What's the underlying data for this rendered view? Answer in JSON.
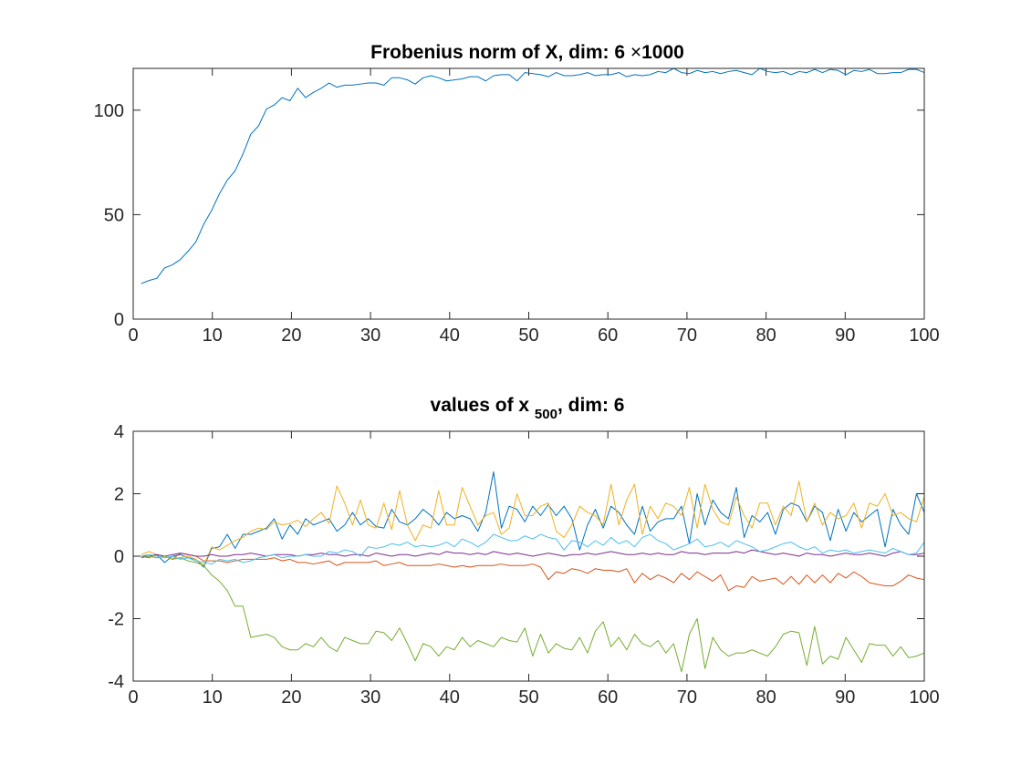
{
  "chart_data": [
    {
      "type": "line",
      "title": "Frobenius norm of X, dim: 6 ×1000",
      "title_parts": {
        "text": "Frobenius norm of X, dim: 6 ",
        "mult": "×",
        "count": "1000"
      },
      "xlabel": "",
      "ylabel": "",
      "xlim": [
        0,
        100
      ],
      "ylim": [
        0,
        120
      ],
      "xticks": [
        0,
        10,
        20,
        30,
        40,
        50,
        60,
        70,
        80,
        90,
        100
      ],
      "yticks": [
        0,
        50,
        100
      ],
      "grid": false,
      "series": [
        {
          "color": "#0072BD",
          "values": [
            17.0,
            18.5,
            19.5,
            24.5,
            26.0,
            28.5,
            32.5,
            37.0,
            45.5,
            52.0,
            60.0,
            66.5,
            71.0,
            79.0,
            88.5,
            92.5,
            100.5,
            102.5,
            106.0,
            104.5,
            110.5,
            106.0,
            108.5,
            110.5,
            113.0,
            111.0,
            112.0,
            112.0,
            112.5,
            113.0,
            113.0,
            112.0,
            115.5,
            115.5,
            114.5,
            112.5,
            115.5,
            116.5,
            115.5,
            114.0,
            114.5,
            115.0,
            116.0,
            116.0,
            114.0,
            116.5,
            117.0,
            117.0,
            114.0,
            118.0,
            117.5,
            117.0,
            116.0,
            118.0,
            116.5,
            116.5,
            117.0,
            118.0,
            116.5,
            117.0,
            117.0,
            118.0,
            116.0,
            117.0,
            116.5,
            117.0,
            118.5,
            118.0,
            120.0,
            118.0,
            117.5,
            119.0,
            118.0,
            118.5,
            117.5,
            118.5,
            119.0,
            118.0,
            117.0,
            120.0,
            118.5,
            118.0,
            118.5,
            117.0,
            118.5,
            118.0,
            119.5,
            118.0,
            119.5,
            119.0,
            117.0,
            119.0,
            118.5,
            119.5,
            117.5,
            117.5,
            118.0,
            118.0,
            119.5,
            119.5,
            118.0
          ]
        }
      ]
    },
    {
      "type": "line",
      "title": "values of x 500, dim: 6",
      "title_parts": {
        "prefix": "values of x ",
        "subscript": "500",
        "suffix": ", dim: 6"
      },
      "xlabel": "",
      "ylabel": "",
      "xlim": [
        0,
        100
      ],
      "ylim": [
        -4,
        4
      ],
      "xticks": [
        0,
        10,
        20,
        30,
        40,
        50,
        60,
        70,
        80,
        90,
        100
      ],
      "yticks": [
        -4,
        -2,
        0,
        2,
        4
      ],
      "grid": false,
      "series": [
        {
          "color": "#0072BD",
          "values": [
            -0.05,
            0.0,
            0.05,
            -0.2,
            0.0,
            0.05,
            -0.05,
            -0.1,
            -0.35,
            0.25,
            0.3,
            0.7,
            0.25,
            0.7,
            0.7,
            0.8,
            0.9,
            1.2,
            0.55,
            1.0,
            0.7,
            1.2,
            1.0,
            1.1,
            1.2,
            0.8,
            1.0,
            1.4,
            1.0,
            1.2,
            0.95,
            0.9,
            1.5,
            1.1,
            1.0,
            1.2,
            1.5,
            1.3,
            1.0,
            1.4,
            1.2,
            1.3,
            1.2,
            0.8,
            1.4,
            2.7,
            0.9,
            1.6,
            1.5,
            1.1,
            1.6,
            1.3,
            1.65,
            1.3,
            1.6,
            1.2,
            0.2,
            1.0,
            1.5,
            0.9,
            1.6,
            1.4,
            1.0,
            0.7,
            1.6,
            0.8,
            1.1,
            1.2,
            1.2,
            1.6,
            0.4,
            2.0,
            1.0,
            1.8,
            1.4,
            1.2,
            2.2,
            0.6,
            1.3,
            1.1,
            1.4,
            0.7,
            1.5,
            1.7,
            1.6,
            1.1,
            1.6,
            1.4,
            0.5,
            1.5,
            0.8,
            1.4,
            1.1,
            1.3,
            1.5,
            0.3,
            1.5,
            1.0,
            0.7,
            2.0,
            1.4
          ]
        },
        {
          "color": "#D95319",
          "values": [
            0.0,
            -0.05,
            0.05,
            0.0,
            -0.1,
            0.1,
            0.05,
            0.0,
            -0.15,
            -0.15,
            -0.15,
            -0.2,
            -0.15,
            -0.1,
            -0.1,
            -0.1,
            -0.1,
            -0.05,
            -0.15,
            -0.1,
            -0.2,
            -0.2,
            -0.25,
            -0.2,
            -0.15,
            -0.3,
            -0.2,
            -0.2,
            -0.2,
            -0.2,
            -0.15,
            -0.3,
            -0.25,
            -0.2,
            -0.3,
            -0.3,
            -0.3,
            -0.3,
            -0.25,
            -0.3,
            -0.35,
            -0.3,
            -0.35,
            -0.3,
            -0.3,
            -0.3,
            -0.25,
            -0.3,
            -0.3,
            -0.3,
            -0.25,
            -0.35,
            -0.75,
            -0.5,
            -0.55,
            -0.4,
            -0.45,
            -0.55,
            -0.4,
            -0.45,
            -0.45,
            -0.5,
            -0.4,
            -0.85,
            -0.55,
            -0.75,
            -0.6,
            -0.7,
            -0.85,
            -0.55,
            -0.75,
            -0.5,
            -0.65,
            -0.8,
            -0.6,
            -1.1,
            -0.95,
            -1.0,
            -0.65,
            -0.8,
            -0.75,
            -0.7,
            -0.9,
            -0.65,
            -0.9,
            -0.6,
            -0.85,
            -0.6,
            -0.85,
            -0.55,
            -0.7,
            -0.5,
            -0.65,
            -0.85,
            -0.9,
            -0.95,
            -0.95,
            -0.8,
            -0.6,
            -0.7,
            -0.75
          ]
        },
        {
          "color": "#EDB120",
          "values": [
            0.05,
            0.15,
            0.05,
            0.0,
            -0.1,
            -0.05,
            0.0,
            -0.1,
            -0.3,
            0.3,
            0.2,
            0.35,
            0.5,
            0.6,
            0.8,
            0.9,
            0.85,
            1.1,
            1.0,
            1.05,
            1.15,
            0.95,
            1.2,
            1.4,
            1.05,
            2.25,
            1.7,
            1.0,
            1.8,
            1.0,
            0.9,
            1.7,
            0.85,
            2.1,
            1.0,
            0.5,
            1.0,
            0.9,
            2.1,
            1.0,
            1.0,
            2.2,
            1.6,
            1.0,
            1.3,
            1.4,
            0.7,
            0.9,
            2.0,
            1.3,
            1.3,
            1.6,
            1.7,
            0.8,
            0.6,
            1.0,
            1.6,
            1.4,
            1.3,
            1.0,
            2.3,
            1.0,
            1.8,
            2.3,
            0.7,
            1.6,
            1.2,
            1.7,
            1.6,
            1.3,
            2.2,
            0.9,
            2.3,
            1.5,
            1.1,
            1.0,
            1.9,
            1.3,
            0.9,
            1.7,
            1.7,
            1.0,
            1.6,
            1.3,
            2.4,
            1.1,
            1.7,
            1.0,
            1.4,
            1.2,
            1.3,
            1.7,
            0.9,
            1.7,
            1.6,
            2.0,
            1.3,
            1.4,
            1.2,
            1.1,
            1.9
          ]
        },
        {
          "color": "#7E2F8E",
          "values": [
            0.0,
            0.0,
            0.05,
            0.0,
            0.05,
            0.1,
            0.05,
            0.0,
            0.0,
            0.05,
            0.0,
            0.0,
            0.05,
            0.05,
            0.1,
            0.05,
            0.0,
            0.05,
            0.05,
            0.05,
            0.0,
            0.05,
            0.05,
            0.1,
            0.05,
            0.05,
            0.0,
            0.05,
            0.05,
            0.0,
            0.1,
            0.05,
            0.0,
            0.05,
            0.05,
            0.0,
            0.05,
            0.1,
            0.05,
            0.15,
            0.1,
            0.1,
            0.05,
            0.1,
            0.05,
            0.15,
            0.1,
            0.05,
            0.1,
            0.05,
            0.0,
            0.05,
            0.1,
            0.05,
            0.0,
            0.05,
            0.05,
            0.1,
            0.05,
            0.1,
            0.15,
            0.1,
            0.05,
            0.05,
            0.1,
            0.05,
            0.1,
            0.05,
            0.05,
            0.15,
            0.1,
            0.1,
            0.05,
            0.1,
            0.1,
            0.1,
            0.15,
            0.1,
            0.2,
            0.15,
            0.1,
            0.05,
            0.1,
            0.05,
            0.0,
            0.1,
            0.05,
            0.05,
            0.0,
            0.05,
            0.1,
            0.05,
            0.05,
            0.1,
            0.05,
            0.0,
            0.1,
            0.15,
            0.05,
            0.05,
            0.1
          ]
        },
        {
          "color": "#77AC30",
          "values": [
            -0.05,
            0.0,
            -0.05,
            0.0,
            -0.1,
            -0.05,
            -0.15,
            -0.2,
            -0.3,
            -0.6,
            -0.8,
            -1.1,
            -1.6,
            -1.6,
            -2.6,
            -2.55,
            -2.5,
            -2.6,
            -2.9,
            -3.0,
            -3.0,
            -2.8,
            -2.9,
            -2.6,
            -2.9,
            -3.05,
            -2.6,
            -2.7,
            -2.8,
            -2.8,
            -2.4,
            -2.45,
            -2.7,
            -2.3,
            -2.8,
            -3.35,
            -2.8,
            -2.9,
            -3.2,
            -2.9,
            -3.0,
            -2.6,
            -2.9,
            -2.7,
            -2.8,
            -2.9,
            -2.6,
            -2.7,
            -2.75,
            -2.3,
            -3.2,
            -2.5,
            -3.1,
            -2.8,
            -2.95,
            -3.0,
            -2.6,
            -3.1,
            -2.4,
            -2.1,
            -2.9,
            -2.6,
            -3.0,
            -2.5,
            -2.8,
            -2.9,
            -2.7,
            -3.1,
            -2.8,
            -3.7,
            -2.5,
            -2.0,
            -3.6,
            -2.6,
            -3.0,
            -3.2,
            -3.1,
            -3.1,
            -3.0,
            -3.1,
            -3.2,
            -2.9,
            -2.5,
            -2.4,
            -2.45,
            -3.5,
            -2.25,
            -3.45,
            -3.2,
            -3.3,
            -2.6,
            -3.0,
            -3.4,
            -2.8,
            -2.85,
            -2.85,
            -3.2,
            -2.9,
            -3.25,
            -3.2,
            -3.1
          ]
        },
        {
          "color": "#4DBEEE",
          "values": [
            0.0,
            0.05,
            0.0,
            -0.05,
            0.0,
            -0.1,
            -0.05,
            -0.15,
            -0.2,
            -0.25,
            -0.1,
            -0.15,
            -0.1,
            -0.2,
            -0.15,
            -0.05,
            0.0,
            0.05,
            -0.05,
            0.0,
            0.0,
            0.05,
            0.0,
            0.0,
            0.15,
            0.1,
            0.2,
            0.15,
            0.0,
            0.3,
            0.25,
            0.3,
            0.4,
            0.35,
            0.45,
            0.3,
            0.35,
            0.3,
            0.35,
            0.45,
            0.3,
            0.55,
            0.45,
            0.3,
            0.45,
            0.7,
            0.6,
            0.5,
            0.5,
            0.65,
            0.55,
            0.7,
            0.6,
            0.55,
            0.2,
            0.5,
            0.45,
            0.3,
            0.5,
            0.35,
            0.6,
            0.4,
            0.5,
            0.3,
            0.6,
            0.7,
            0.5,
            0.4,
            0.2,
            0.3,
            0.4,
            0.55,
            0.3,
            0.35,
            0.45,
            0.3,
            0.5,
            0.4,
            0.3,
            0.15,
            0.2,
            0.3,
            0.4,
            0.45,
            0.3,
            0.2,
            0.3,
            0.1,
            0.2,
            0.15,
            0.2,
            0.1,
            0.15,
            0.2,
            0.15,
            0.1,
            0.25,
            0.15,
            0.05,
            0.1,
            0.45
          ]
        }
      ]
    }
  ]
}
